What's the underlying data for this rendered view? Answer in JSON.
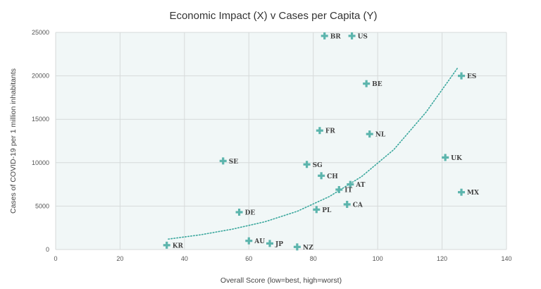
{
  "chart_data": {
    "type": "scatter",
    "title": "Economic Impact (X) v Cases per Capita (Y)",
    "xlabel": "Overall Score (low=best, high=worst)",
    "ylabel": "Cases of COVID-19 per 1 million inhabitants",
    "xlim": [
      0,
      140
    ],
    "ylim": [
      0,
      25000
    ],
    "xticks": [
      "0",
      "20",
      "40",
      "60",
      "80",
      "100",
      "120",
      "140"
    ],
    "yticks": [
      "0",
      "5000",
      "10000",
      "15000",
      "20000",
      "25000"
    ],
    "grid": true,
    "colors": {
      "marker": "#5cb5ad",
      "trend": "#3aa79d",
      "plot_bg": "#f1f7f7",
      "grid": "#d6dada"
    },
    "points": [
      {
        "label": "BR",
        "x": 83.5,
        "y": 24600
      },
      {
        "label": "US",
        "x": 92,
        "y": 24600
      },
      {
        "label": "ES",
        "x": 126,
        "y": 20000
      },
      {
        "label": "BE",
        "x": 96.5,
        "y": 19100
      },
      {
        "label": "FR",
        "x": 82,
        "y": 13700
      },
      {
        "label": "NL",
        "x": 97.5,
        "y": 13300
      },
      {
        "label": "UK",
        "x": 121,
        "y": 10600
      },
      {
        "label": "SE",
        "x": 52,
        "y": 10200
      },
      {
        "label": "SG",
        "x": 78,
        "y": 9800
      },
      {
        "label": "CH",
        "x": 82.5,
        "y": 8500
      },
      {
        "label": "AT",
        "x": 91.5,
        "y": 7500
      },
      {
        "label": "IT",
        "x": 88,
        "y": 6900
      },
      {
        "label": "MX",
        "x": 126,
        "y": 6600
      },
      {
        "label": "CA",
        "x": 90.5,
        "y": 5200
      },
      {
        "label": "PL",
        "x": 81,
        "y": 4600
      },
      {
        "label": "DE",
        "x": 57,
        "y": 4300
      },
      {
        "label": "AU",
        "x": 60,
        "y": 1000
      },
      {
        "label": "JP",
        "x": 66.5,
        "y": 700
      },
      {
        "label": "KR",
        "x": 34.5,
        "y": 500
      },
      {
        "label": "NZ",
        "x": 75,
        "y": 300
      }
    ],
    "trendline": {
      "type": "exponential",
      "x": [
        35,
        45,
        55,
        65,
        75,
        85,
        95,
        105,
        115,
        125
      ],
      "y": [
        1200,
        1700,
        2350,
        3200,
        4400,
        6100,
        8400,
        11500,
        15800,
        21000
      ]
    }
  }
}
